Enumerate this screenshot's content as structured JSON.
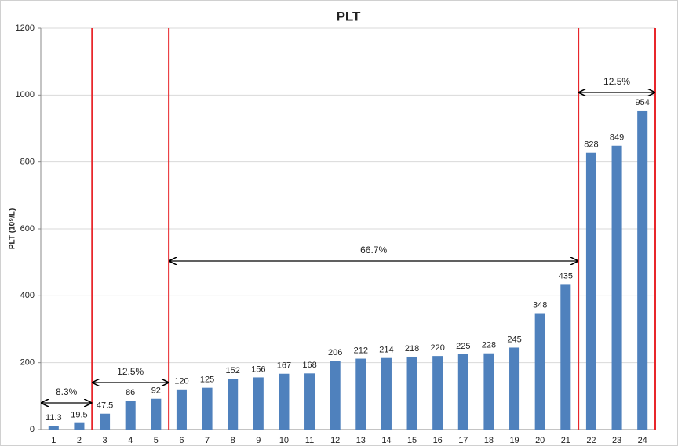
{
  "chart_data": {
    "type": "bar",
    "title": "PLT",
    "y_label": "PLT (10⁹/L)",
    "categories": [
      "1",
      "2",
      "3",
      "4",
      "5",
      "6",
      "7",
      "8",
      "9",
      "10",
      "11",
      "12",
      "13",
      "14",
      "15",
      "16",
      "17",
      "18",
      "19",
      "20",
      "21",
      "22",
      "23",
      "24"
    ],
    "values": [
      11.3,
      19.5,
      47.5,
      86,
      92,
      120,
      125,
      152,
      156,
      167,
      168,
      206,
      212,
      214,
      218,
      220,
      225,
      228,
      245,
      348,
      435,
      828,
      849,
      954
    ],
    "color": "#4f81bd",
    "ylim": [
      0,
      1200
    ],
    "yticks": [
      0,
      200,
      400,
      600,
      800,
      1000,
      1200
    ],
    "grid": true,
    "annotations": [
      "8.3%",
      "12.5%",
      "66.7%",
      "12.5%"
    ],
    "divider_color": "#e8262b"
  }
}
